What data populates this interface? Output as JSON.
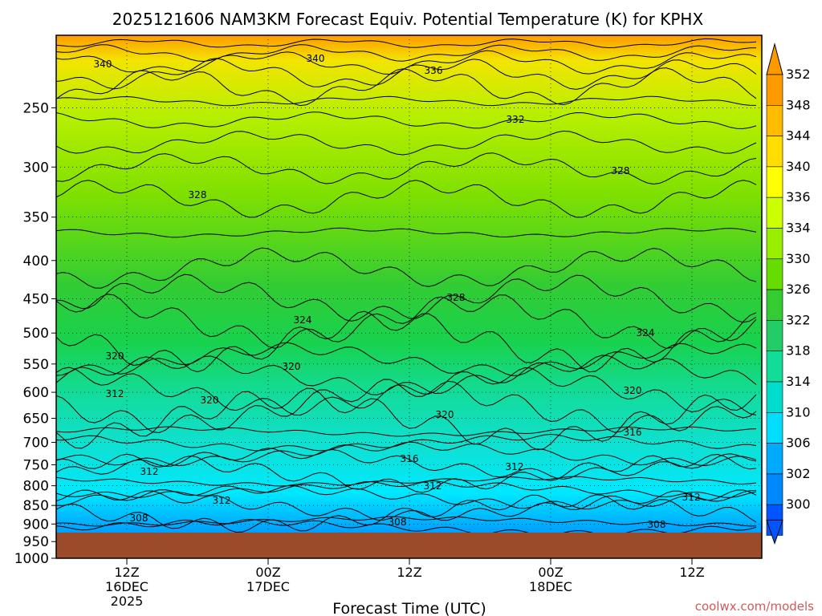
{
  "chart_data": {
    "type": "heatmap",
    "title": "2025121606 NAM3KM Forecast Equiv. Potential Temperature (K) for KPHX",
    "xlabel": "Forecast Time (UTC)",
    "ylabel": "",
    "credit": "coolwx.com/models",
    "y_scale": "log-pressure (hPa), inverted",
    "ylim": [
      200,
      1000
    ],
    "y_ticks": [
      "250",
      "300",
      "350",
      "400",
      "450",
      "500",
      "550",
      "600",
      "650",
      "700",
      "750",
      "800",
      "850",
      "900",
      "950",
      "1000"
    ],
    "x_ticks": [
      {
        "line1": "12Z",
        "line2": "16DEC",
        "line3": "2025"
      },
      {
        "line1": "00Z",
        "line2": "17DEC",
        "line3": ""
      },
      {
        "line1": "12Z",
        "line2": "",
        "line3": ""
      },
      {
        "line1": "00Z",
        "line2": "18DEC",
        "line3": ""
      },
      {
        "line1": "12Z",
        "line2": "",
        "line3": ""
      }
    ],
    "colorbar": {
      "unit": "K",
      "levels": [
        "352",
        "348",
        "344",
        "340",
        "336",
        "334",
        "330",
        "326",
        "322",
        "318",
        "314",
        "310",
        "306",
        "302",
        "300"
      ],
      "colors": [
        "#ff9900",
        "#ffbb00",
        "#ffdd00",
        "#ffff00",
        "#ccff00",
        "#99ee00",
        "#66dd00",
        "#33cc33",
        "#22cc66",
        "#11dd99",
        "#00ddcc",
        "#00ddff",
        "#00aaff",
        "#0088ff",
        "#0055ff"
      ]
    },
    "contour_labels": [
      "340",
      "340",
      "336",
      "332",
      "328",
      "328",
      "328",
      "324",
      "324",
      "320",
      "320",
      "320",
      "320",
      "320",
      "312",
      "312",
      "316",
      "316",
      "312",
      "312",
      "312",
      "312",
      "308",
      "308",
      "308"
    ],
    "grid": true,
    "ground_color": "#9b4b2a"
  }
}
